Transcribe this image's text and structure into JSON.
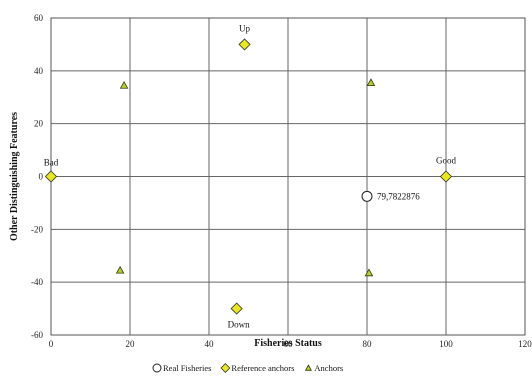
{
  "chart_data": {
    "type": "scatter",
    "xlabel": "Fisheries Status",
    "ylabel": "Other Distinguishing Features",
    "xlim": [
      0,
      120
    ],
    "ylim": [
      -60,
      60
    ],
    "x_ticks": [
      0,
      20,
      40,
      60,
      80,
      100,
      120
    ],
    "y_ticks": [
      60,
      40,
      20,
      0,
      -20,
      -40,
      -60
    ],
    "grid": true,
    "legend_position": "bottom",
    "series": [
      {
        "name": "Real Fisheries",
        "marker": "circle",
        "color": "#ffffff",
        "points": [
          {
            "x": 80,
            "y": -7.5,
            "label": "79,7822876"
          }
        ]
      },
      {
        "name": "Reference anchors",
        "marker": "diamond",
        "color": "#e8e81c",
        "points": [
          {
            "x": 0,
            "y": 0,
            "label": "Bad"
          },
          {
            "x": 49,
            "y": 50,
            "label": "Up"
          },
          {
            "x": 100,
            "y": 0,
            "label": "Good"
          },
          {
            "x": 47,
            "y": -50,
            "label": "Down"
          }
        ]
      },
      {
        "name": "Anchors",
        "marker": "triangle",
        "color": "#b7cf2a",
        "points": [
          {
            "x": 18.5,
            "y": 34.5
          },
          {
            "x": 81,
            "y": 35.5
          },
          {
            "x": 17.5,
            "y": -35.5
          },
          {
            "x": 80.5,
            "y": -36.5
          }
        ]
      }
    ]
  }
}
